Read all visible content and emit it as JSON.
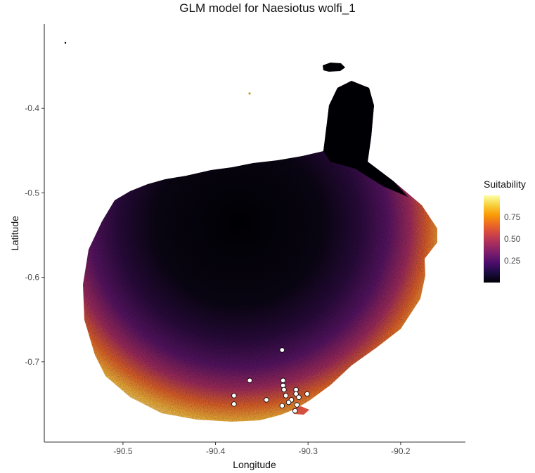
{
  "title": "GLM model for Naesiotus wolfi_1",
  "x_axis": {
    "label": "Longitude",
    "ticks": [
      {
        "value": -90.5,
        "label": "-90.5"
      },
      {
        "value": -90.4,
        "label": "-90.4"
      },
      {
        "value": -90.3,
        "label": "-90.3"
      },
      {
        "value": -90.2,
        "label": "-90.2"
      }
    ],
    "range": [
      -90.585,
      -90.13
    ]
  },
  "y_axis": {
    "label": "Latitude",
    "ticks": [
      {
        "value": -0.4,
        "label": "-0.4"
      },
      {
        "value": -0.5,
        "label": "-0.5"
      },
      {
        "value": -0.6,
        "label": "-0.6"
      },
      {
        "value": -0.7,
        "label": "-0.7"
      }
    ],
    "range": [
      -0.795,
      -0.3
    ]
  },
  "legend": {
    "title": "Suitability",
    "ticks": [
      {
        "value": 0.75,
        "label": "0.75"
      },
      {
        "value": 0.5,
        "label": "0.50"
      },
      {
        "value": 0.25,
        "label": "0.25"
      }
    ],
    "range": [
      0.0,
      1.0
    ],
    "colors": [
      "#000004",
      "#1b0c41",
      "#4a0c6b",
      "#781c6d",
      "#a52c60",
      "#cf4446",
      "#ed6925",
      "#fb9b06",
      "#f7d13d",
      "#fcffa4"
    ]
  },
  "colors": {
    "axis": "#333333",
    "point_fill": "#ffffff",
    "point_stroke": "#000000"
  },
  "occurrence_points": [
    {
      "lon": -90.328,
      "lat": -0.686
    },
    {
      "lon": -90.363,
      "lat": -0.722
    },
    {
      "lon": -90.327,
      "lat": -0.722
    },
    {
      "lon": -90.327,
      "lat": -0.728
    },
    {
      "lon": -90.326,
      "lat": -0.733
    },
    {
      "lon": -90.313,
      "lat": -0.733
    },
    {
      "lon": -90.313,
      "lat": -0.738
    },
    {
      "lon": -90.301,
      "lat": -0.738
    },
    {
      "lon": -90.38,
      "lat": -0.74
    },
    {
      "lon": -90.324,
      "lat": -0.74
    },
    {
      "lon": -90.31,
      "lat": -0.742
    },
    {
      "lon": -90.318,
      "lat": -0.745
    },
    {
      "lon": -90.345,
      "lat": -0.745
    },
    {
      "lon": -90.321,
      "lat": -0.748
    },
    {
      "lon": -90.38,
      "lat": -0.75
    },
    {
      "lon": -90.312,
      "lat": -0.751
    },
    {
      "lon": -90.328,
      "lat": -0.752
    },
    {
      "lon": -90.314,
      "lat": -0.758
    }
  ]
}
